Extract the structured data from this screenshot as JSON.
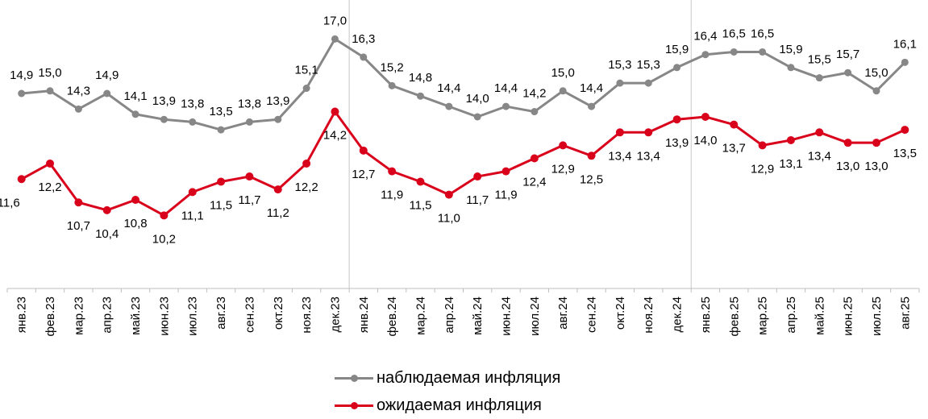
{
  "chart_data": {
    "type": "line",
    "title": "",
    "xlabel": "",
    "ylabel": "",
    "categories": [
      "янв.23",
      "фев.23",
      "мар.23",
      "апр.23",
      "май.23",
      "июн.23",
      "июл.23",
      "авг.23",
      "сен.23",
      "окт.23",
      "ноя.23",
      "дек.23",
      "янв.24",
      "фев.24",
      "мар.24",
      "апр.24",
      "май.24",
      "июн.24",
      "июл.24",
      "авг.24",
      "сен.24",
      "окт.24",
      "ноя.24",
      "дек.24",
      "янв.25",
      "фев.25",
      "мар.25",
      "апр.25",
      "май.25",
      "июн.25",
      "июл.25",
      "авг.25"
    ],
    "series": [
      {
        "name": "наблюдаемая инфляция",
        "color": "#878787",
        "values": [
          14.9,
          15.0,
          14.3,
          14.9,
          14.1,
          13.9,
          13.8,
          13.5,
          13.8,
          13.9,
          15.1,
          17.0,
          16.3,
          15.2,
          14.8,
          14.4,
          14.0,
          14.4,
          14.2,
          15.0,
          14.4,
          15.3,
          15.3,
          15.9,
          16.4,
          16.5,
          16.5,
          15.9,
          15.5,
          15.7,
          15.0,
          16.1
        ],
        "labels": [
          "14,9",
          "15,0",
          "14,3",
          "14,9",
          "14,1",
          "13,9",
          "13,8",
          "13,5",
          "13,8",
          "13,9",
          "15,1",
          "17,0",
          "16,3",
          "15,2",
          "14,8",
          "14,4",
          "14,0",
          "14,4",
          "14,2",
          "15,0",
          "14,4",
          "15,3",
          "15,3",
          "15,9",
          "16,4",
          "16,5",
          "16,5",
          "15,9",
          "15,5",
          "15,7",
          "15,0",
          "16,1"
        ]
      },
      {
        "name": "ожидаемая инфляция",
        "color": "#D9001B",
        "values": [
          11.6,
          12.2,
          10.7,
          10.4,
          10.8,
          10.2,
          11.1,
          11.5,
          11.7,
          11.2,
          12.2,
          14.2,
          12.7,
          11.9,
          11.5,
          11.0,
          11.7,
          11.9,
          12.4,
          12.9,
          12.5,
          13.4,
          13.4,
          13.9,
          14.0,
          13.7,
          12.9,
          13.1,
          13.4,
          13.0,
          13.0,
          13.5
        ],
        "labels": [
          "11,6",
          "12,2",
          "10,7",
          "10,4",
          "10,8",
          "10,2",
          "11,1",
          "11,5",
          "11,7",
          "11,2",
          "12,2",
          "14,2",
          "12,7",
          "11,9",
          "11,5",
          "11,0",
          "11,7",
          "11,9",
          "12,4",
          "12,9",
          "12,5",
          "13,4",
          "13,4",
          "13,9",
          "14,0",
          "13,7",
          "12,9",
          "13,1",
          "13,4",
          "13,0",
          "13,0",
          "13,5"
        ]
      }
    ],
    "year_dividers_after": [
      "дек.23",
      "дек.24"
    ],
    "grid": false,
    "legend_position": "bottom",
    "y_axis_visible": false
  },
  "legend": {
    "observed": "наблюдаемая инфляция",
    "expected": "ожидаемая инфляция"
  }
}
